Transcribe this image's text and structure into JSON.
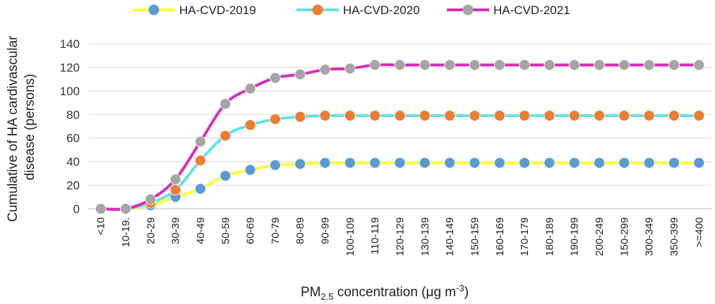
{
  "chart_data": {
    "type": "line",
    "title": "",
    "xlabel_main": "PM",
    "xlabel_sub": "2.5",
    "xlabel_rest": " concentration (μg m",
    "xlabel_sup": "-3",
    "xlabel_end": ")",
    "ylabel_lines": [
      "Cumulative of HA cardivascular",
      "disease (persons)"
    ],
    "ylim": [
      0,
      140
    ],
    "yticks": [
      0,
      20,
      40,
      60,
      80,
      100,
      120,
      140
    ],
    "grid": true,
    "legend_position": "top",
    "categories": [
      "<10",
      "10-19.",
      "20-29",
      "30-39",
      "40-49",
      "50-59",
      "60-69",
      "70-79",
      "80-89",
      "90-99",
      "100-109",
      "110-119",
      "120-129",
      "130-139",
      "140-149",
      "150-159",
      "160-169",
      "170-179",
      "180-189",
      "190-199",
      "200-249",
      "150-299",
      "300-349",
      "350-399",
      ">=400"
    ],
    "series": [
      {
        "name": "HA-CVD-2019",
        "line_color": "#FFFF33",
        "marker_color": "#5B9BD5",
        "values": [
          0,
          0,
          3,
          10,
          17,
          28,
          33,
          37,
          38,
          39,
          39,
          39,
          39,
          39,
          39,
          39,
          39,
          39,
          39,
          39,
          39,
          39,
          39,
          39,
          39
        ]
      },
      {
        "name": "HA-CVD-2020",
        "line_color": "#66E0E8",
        "marker_color": "#ED7D31",
        "values": [
          0,
          0,
          5,
          16,
          41,
          62,
          71,
          76,
          78,
          79,
          79,
          79,
          79,
          79,
          79,
          79,
          79,
          79,
          79,
          79,
          79,
          79,
          79,
          79,
          79
        ]
      },
      {
        "name": "HA-CVD-2021",
        "line_color": "#D62FB8",
        "marker_color": "#A5A5A5",
        "values": [
          0,
          0,
          8,
          25,
          57,
          89,
          102,
          111,
          114,
          118,
          119,
          122,
          122,
          122,
          122,
          122,
          122,
          122,
          122,
          122,
          122,
          122,
          122,
          122,
          122
        ]
      }
    ]
  }
}
